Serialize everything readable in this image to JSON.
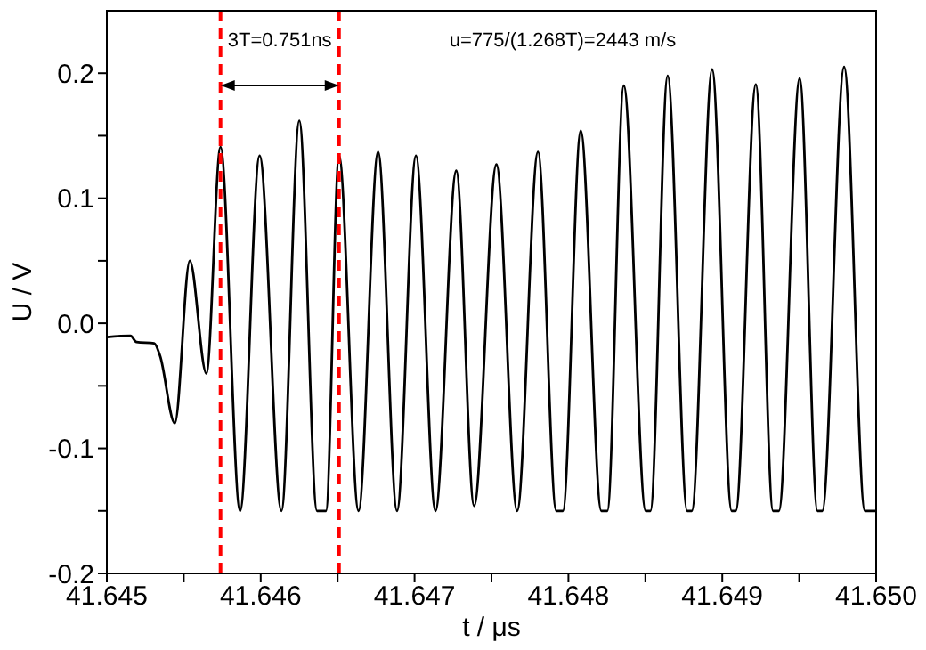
{
  "chart_data": {
    "type": "line",
    "xlabel": "t / μs",
    "ylabel": "U / V",
    "xlim": [
      41.645,
      41.65
    ],
    "xticks": [
      41.645,
      {
        "value": 41.6455,
        "label": null
      },
      41.646,
      {
        "value": 41.6465,
        "label": null
      },
      41.647,
      {
        "value": 41.6475,
        "label": null
      },
      41.648,
      {
        "value": 41.6485,
        "label": null
      },
      41.649,
      {
        "value": 41.6495,
        "label": null
      },
      {
        "value": 41.65,
        "label": "41.650"
      }
    ],
    "ylim": [
      -0.2,
      0.25
    ],
    "yticks": [
      -0.2,
      {
        "value": -0.15,
        "label": null
      },
      -0.1,
      {
        "value": -0.05,
        "label": null
      },
      {
        "value": 0,
        "label": "0.0"
      },
      {
        "value": 0.05,
        "label": null
      },
      0.1,
      {
        "value": 0.15,
        "label": null
      },
      0.2
    ],
    "marker": "none",
    "line_style": "solid",
    "ref_lines": [
      {
        "axis": "x",
        "value": 41.645739,
        "label": null,
        "color": "#ff0000",
        "line_style": "dashed"
      },
      {
        "axis": "x",
        "value": 41.646509,
        "label": null,
        "color": "#ff0000",
        "line_style": "dashed"
      }
    ],
    "annotations": [
      "3T=0.751ns",
      "u=775/(1.268T)=2443 m/s"
    ],
    "series": [
      {
        "color": "#000000",
        "x": [
          41.645,
          41.645154,
          41.645193,
          41.645308,
          41.645346,
          41.645442,
          41.645539,
          41.645647,
          41.645739,
          41.645866,
          41.645993,
          41.646135,
          41.646251,
          41.646366,
          41.646424,
          41.646509,
          41.646636,
          41.646763,
          41.646886,
          41.647009,
          41.647136,
          41.647271,
          41.647387,
          41.647532,
          41.647667,
          41.647802,
          41.647921,
          41.647964,
          41.64808,
          41.648214,
          41.648253,
          41.64836,
          41.648502,
          41.648533,
          41.648645,
          41.648772,
          41.648802,
          41.648934,
          41.649061,
          41.649088,
          41.649218,
          41.64933,
          41.649368,
          41.649503,
          41.649619,
          41.64965,
          41.649792,
          41.649927,
          41.65
        ],
        "values": [
          -0.011,
          -0.01,
          -0.015,
          -0.016,
          -0.026,
          -0.08,
          0.05,
          -0.04,
          0.141,
          -0.15,
          0.134,
          -0.15,
          0.162,
          -0.15,
          -0.15,
          0.134,
          -0.15,
          0.137,
          -0.15,
          0.134,
          -0.15,
          0.122,
          -0.146,
          0.127,
          -0.15,
          0.137,
          -0.15,
          -0.15,
          0.154,
          -0.15,
          -0.15,
          0.19,
          -0.15,
          -0.15,
          0.198,
          -0.15,
          -0.15,
          0.203,
          -0.15,
          -0.15,
          0.191,
          -0.15,
          -0.15,
          0.196,
          -0.15,
          -0.15,
          0.205,
          -0.15,
          -0.15
        ]
      }
    ]
  }
}
